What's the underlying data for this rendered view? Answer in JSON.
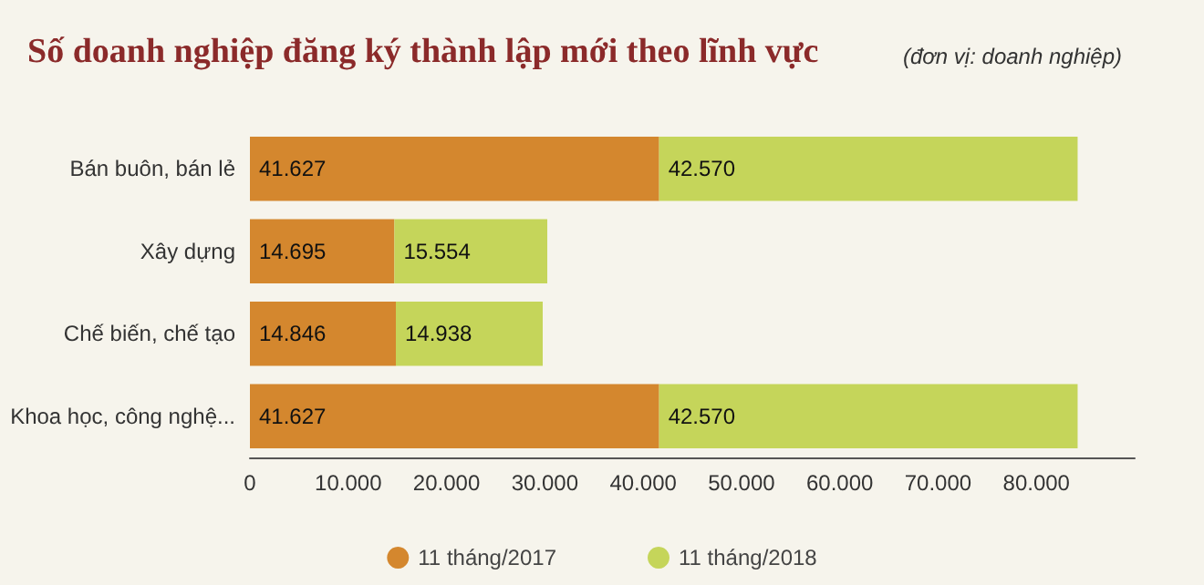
{
  "chart_data": {
    "type": "bar",
    "orientation": "horizontal",
    "stacked": true,
    "title": "Số doanh nghiệp đăng ký thành lập mới theo lĩnh vực",
    "subtitle": "(đơn vị: doanh nghiệp)",
    "categories": [
      "Bán buôn, bán lẻ",
      "Xây dựng",
      "Chế biến, chế tạo",
      "Khoa học, công nghệ..."
    ],
    "series": [
      {
        "name": "11 tháng/2017",
        "color": "#d4872e",
        "values": [
          41627,
          14695,
          14846,
          41627
        ],
        "value_labels": [
          "41.627",
          "14.695",
          "14.846",
          "41.627"
        ]
      },
      {
        "name": "11 tháng/2018",
        "color": "#c5d55a",
        "values": [
          42570,
          15554,
          14938,
          42570
        ],
        "value_labels": [
          "42.570",
          "15.554",
          "14.938",
          "42.570"
        ]
      }
    ],
    "xlim": [
      0,
      90000
    ],
    "xticks": [
      0,
      {
        "value": 10000,
        "label": "10.000"
      },
      {
        "value": 20000,
        "label": "20.000"
      },
      {
        "value": 30000,
        "label": "30.000"
      },
      {
        "value": 40000,
        "label": "40.000"
      },
      {
        "value": 50000,
        "label": "50.000"
      },
      {
        "value": 60000,
        "label": "60.000"
      },
      {
        "value": 70000,
        "label": "70.000"
      },
      {
        "value": 80000,
        "label": "80.000"
      }
    ],
    "grid": false,
    "legend": "bottom"
  }
}
